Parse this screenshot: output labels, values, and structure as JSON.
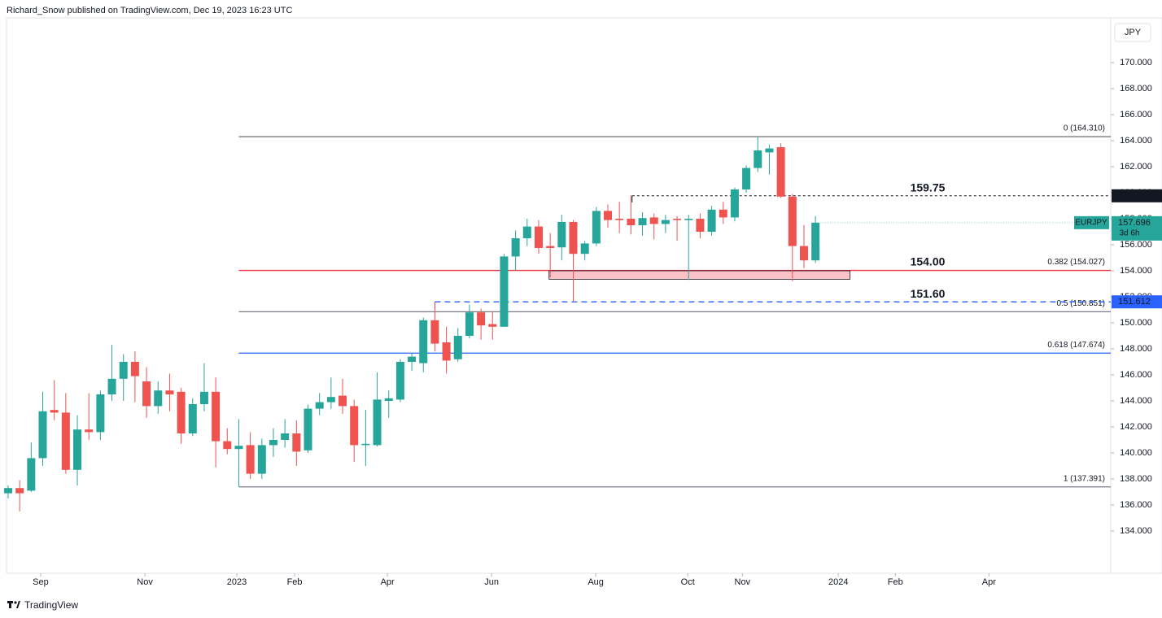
{
  "header": "Richard_Snow published on TradingView.com, Dec 19, 2023 16:23 UTC",
  "footer": "TradingView",
  "chart_data": {
    "type": "candlestick",
    "currency": "JPY",
    "symbol": "EURJPY",
    "last_price": 157.696,
    "countdown": "3d 6h",
    "up_color": "#26a69a",
    "down_color": "#ef5350",
    "open": [
      136.9,
      137.3,
      137.1,
      139.6,
      143.3,
      143.1,
      138.7,
      141.8,
      141.6,
      144.5,
      145.7,
      147.0,
      145.5,
      143.6,
      144.8,
      144.7,
      141.5,
      143.75,
      144.7,
      140.9,
      140.3,
      140.6,
      138.4,
      140.6,
      141.0,
      141.5,
      140.2,
      143.4,
      143.9,
      144.4,
      143.6,
      140.6,
      140.6,
      144.0,
      144.1,
      147.0,
      146.9,
      150.2,
      148.5,
      147.2,
      149.0,
      150.8,
      149.9,
      149.7,
      155.1,
      156.5,
      157.4,
      155.9,
      155.8,
      157.75,
      155.3,
      156.1,
      158.6,
      158.0,
      158.0,
      157.5,
      158.1,
      157.6,
      158.0,
      157.9,
      158.0,
      157.0,
      158.7,
      158.1,
      160.25,
      161.9,
      163.1,
      163.5,
      159.7,
      155.9,
      154.8
    ],
    "high": [
      137.5,
      137.9,
      140.8,
      144.7,
      145.6,
      144.6,
      142.9,
      144.6,
      144.8,
      148.3,
      147.6,
      147.8,
      146.6,
      145.5,
      146.1,
      145.0,
      144.2,
      146.9,
      145.8,
      141.9,
      142.6,
      141.6,
      141.1,
      141.9,
      142.6,
      142.5,
      143.7,
      144.6,
      145.8,
      145.7,
      144.1,
      143.3,
      146.2,
      144.8,
      147.2,
      147.7,
      150.4,
      151.6,
      149.7,
      149.6,
      151.4,
      151.1,
      150.9,
      155.3,
      157.1,
      158.0,
      157.9,
      156.9,
      158.3,
      157.9,
      156.3,
      158.9,
      159.1,
      159.3,
      159.8,
      158.5,
      158.4,
      158.3,
      158.2,
      158.3,
      158.4,
      159.0,
      159.3,
      160.4,
      162.1,
      164.3,
      163.7,
      163.8,
      159.9,
      157.5,
      158.2
    ],
    "low": [
      136.5,
      135.5,
      137.0,
      139.0,
      142.5,
      138.4,
      137.5,
      141.0,
      141.0,
      144.0,
      144.0,
      143.9,
      142.7,
      143.0,
      143.2,
      140.7,
      141.3,
      143.2,
      138.9,
      139.9,
      137.4,
      138.0,
      138.0,
      139.7,
      140.4,
      139.0,
      140.0,
      142.9,
      143.4,
      143.0,
      139.3,
      139.0,
      140.5,
      142.7,
      143.9,
      146.3,
      146.2,
      147.8,
      146.1,
      147.0,
      148.8,
      148.7,
      148.7,
      149.7,
      154.0,
      155.9,
      155.3,
      153.5,
      154.8,
      151.6,
      154.8,
      155.9,
      157.3,
      156.9,
      156.8,
      156.7,
      156.4,
      156.9,
      156.3,
      153.3,
      156.5,
      156.7,
      157.6,
      157.8,
      160.0,
      161.6,
      161.4,
      159.6,
      153.2,
      154.2,
      154.6
    ],
    "close": [
      137.3,
      136.9,
      139.6,
      143.2,
      143.1,
      138.7,
      141.8,
      141.6,
      144.5,
      145.7,
      147.0,
      145.9,
      143.6,
      144.8,
      144.5,
      141.5,
      143.75,
      144.7,
      140.9,
      140.3,
      140.55,
      138.4,
      140.6,
      141.0,
      141.5,
      140.1,
      143.4,
      143.9,
      144.3,
      143.6,
      140.6,
      140.7,
      144.1,
      144.2,
      147.0,
      147.4,
      150.2,
      148.4,
      147.1,
      149.0,
      150.8,
      149.8,
      149.7,
      155.1,
      156.5,
      157.4,
      155.75,
      155.75,
      157.75,
      155.3,
      156.1,
      158.6,
      157.9,
      157.9,
      157.5,
      158.05,
      157.6,
      157.9,
      157.9,
      158.0,
      157.0,
      158.7,
      158.1,
      160.25,
      161.9,
      163.25,
      163.4,
      159.7,
      155.9,
      154.8,
      157.7
    ],
    "xlim": [
      -0.14,
      95.6
    ],
    "xticks": [
      {
        "value": 2.82,
        "label": "Sep"
      },
      {
        "value": 11.86,
        "label": "Nov"
      },
      {
        "value": 19.83,
        "label": "2023"
      },
      {
        "value": 24.84,
        "label": "Feb"
      },
      {
        "value": 32.89,
        "label": "Apr"
      },
      {
        "value": 41.92,
        "label": "Jun"
      },
      {
        "value": 50.95,
        "label": "Aug"
      },
      {
        "value": 58.93,
        "label": "Oct"
      },
      {
        "value": 63.66,
        "label": "Nov"
      },
      {
        "value": 71.98,
        "label": "2024"
      },
      {
        "value": 76.92,
        "label": "Feb"
      },
      {
        "value": 85.04,
        "label": "Apr"
      }
    ],
    "ylim": [
      130.875,
      173.4375
    ],
    "yticks": [
      {
        "value": 134,
        "label": "134.000"
      },
      {
        "value": 136,
        "label": "136.000"
      },
      {
        "value": 138,
        "label": "138.000"
      },
      {
        "value": 140,
        "label": "140.000"
      },
      {
        "value": 142,
        "label": "142.000"
      },
      {
        "value": 144,
        "label": "144.000"
      },
      {
        "value": 146,
        "label": "146.000"
      },
      {
        "value": 148,
        "label": "148.000"
      },
      {
        "value": 150,
        "label": "150.000"
      },
      {
        "value": 152,
        "label": "152.000"
      },
      {
        "value": 154,
        "label": "154.000"
      },
      {
        "value": 156,
        "label": "156.000"
      },
      {
        "value": 158,
        "label": "158.000"
      },
      {
        "value": 160,
        "label": "160.000"
      },
      {
        "value": 162,
        "label": "162.000"
      },
      {
        "value": 164,
        "label": "164.000"
      },
      {
        "value": 166,
        "label": "166.000"
      },
      {
        "value": 168,
        "label": "168.000"
      },
      {
        "value": 170,
        "label": "170.000"
      }
    ],
    "levels_start": 20,
    "levels": [
      {
        "label": "0 (164.310)",
        "value": 164.31,
        "color": "#787b86"
      },
      {
        "label": "0.382 (154.027)",
        "value": 154.027,
        "color": "#f23645",
        "annotation": "154.00"
      },
      {
        "label": "0.5 (150.851)",
        "value": 150.851,
        "color": "#787b86"
      },
      {
        "label": "0.618 (147.674)",
        "value": 147.674,
        "color": "#2962ff"
      },
      {
        "label": "1 (137.391)",
        "value": 137.391,
        "color": "#787b86"
      }
    ],
    "dashed_lines": [
      {
        "value": 159.763,
        "color": "#131722",
        "x_start": 54.1,
        "annotation": "159.75"
      },
      {
        "value": 151.612,
        "color": "#2962ff",
        "x_start": 37,
        "annotation": "151.60"
      }
    ],
    "zone": {
      "x": [
        46.9,
        73
      ],
      "y": [
        153.35,
        154.0
      ]
    }
  }
}
